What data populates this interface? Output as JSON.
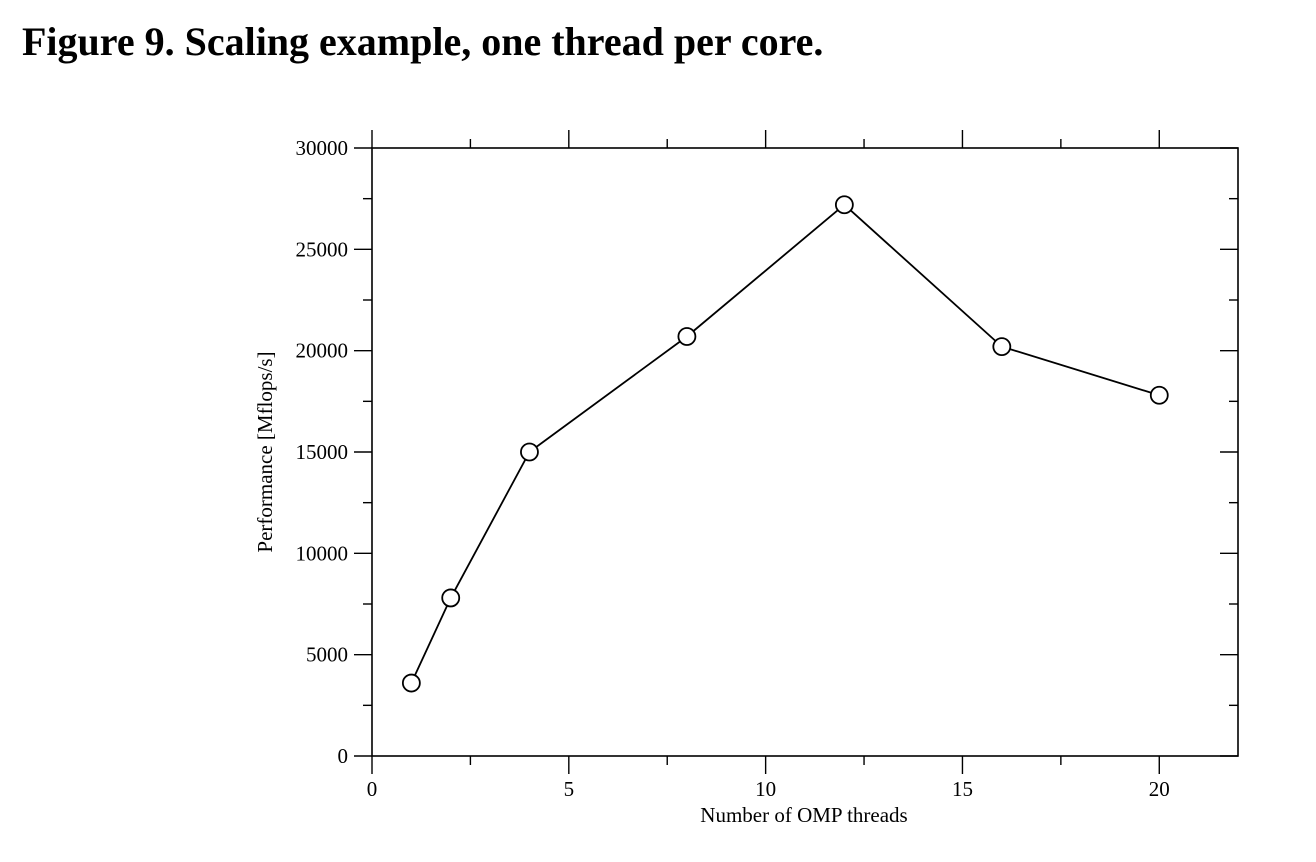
{
  "figure": {
    "title": "Figure 9. Scaling example, one thread per core."
  },
  "chart_data": {
    "type": "line",
    "title": "",
    "xlabel": "Number of OMP threads",
    "ylabel": "Performance [Mflops/s]",
    "xlim": [
      0,
      22
    ],
    "ylim": [
      0,
      30000
    ],
    "x_ticks": [
      0,
      5,
      10,
      15,
      20
    ],
    "x_minor_step": 2.5,
    "y_ticks": [
      0,
      5000,
      10000,
      15000,
      20000,
      25000,
      30000
    ],
    "y_minor_step": 2500,
    "grid": false,
    "marker": "open-circle",
    "line_color": "#000000",
    "series": [
      {
        "x": [
          1,
          2,
          4,
          8,
          12,
          16,
          20
        ],
        "values": [
          3600,
          7800,
          15000,
          20700,
          27200,
          20200,
          17800
        ]
      }
    ]
  }
}
